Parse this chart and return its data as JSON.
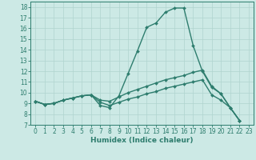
{
  "xlabel": "Humidex (Indice chaleur)",
  "x_ticks": [
    0,
    1,
    2,
    3,
    4,
    5,
    6,
    7,
    8,
    9,
    10,
    11,
    12,
    13,
    14,
    15,
    16,
    17,
    18,
    19,
    20,
    21,
    22,
    23
  ],
  "line1_y": [
    9.2,
    8.9,
    9.0,
    9.3,
    9.5,
    9.7,
    9.8,
    8.8,
    8.6,
    9.7,
    11.8,
    13.9,
    16.1,
    16.5,
    17.5,
    17.9,
    17.9,
    14.4,
    12.0,
    10.5,
    9.9,
    8.6,
    7.4,
    null
  ],
  "line2_y": [
    9.2,
    8.9,
    9.0,
    9.3,
    9.5,
    9.7,
    9.8,
    9.3,
    9.2,
    9.6,
    10.0,
    10.3,
    10.6,
    10.9,
    11.2,
    11.4,
    11.6,
    11.9,
    12.1,
    10.6,
    9.9,
    8.6,
    7.4,
    null
  ],
  "line3_y": [
    9.2,
    8.9,
    9.0,
    9.3,
    9.5,
    9.7,
    9.8,
    9.1,
    8.8,
    9.1,
    9.4,
    9.6,
    9.9,
    10.1,
    10.4,
    10.6,
    10.8,
    11.0,
    11.2,
    9.8,
    9.3,
    8.6,
    7.4,
    null
  ],
  "line_color": "#2e7d6e",
  "marker": "D",
  "marker_size": 2.0,
  "bg_color": "#cce9e5",
  "grid_color": "#b0d4cf",
  "ylim": [
    7,
    18.5
  ],
  "xlim": [
    -0.5,
    23.5
  ],
  "yticks": [
    7,
    8,
    9,
    10,
    11,
    12,
    13,
    14,
    15,
    16,
    17,
    18
  ],
  "line_width": 1.0,
  "tick_fontsize": 5.5,
  "xlabel_fontsize": 6.5
}
